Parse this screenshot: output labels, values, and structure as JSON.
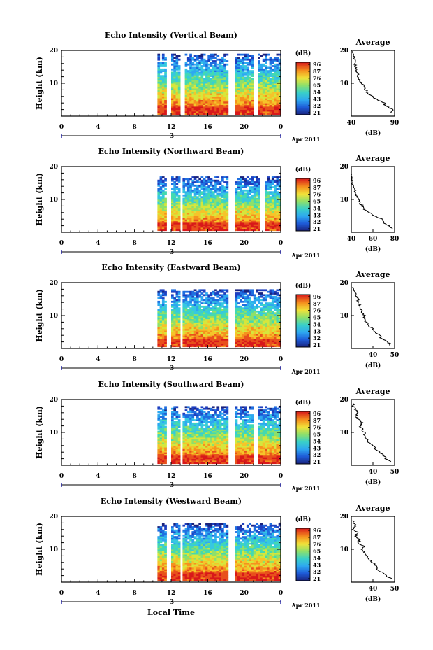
{
  "figure": {
    "bottom_label": "Local Time",
    "date_label": "Apr 2011",
    "date_marker": "3",
    "colorbar_unit": "(dB)",
    "avg_title": "Average",
    "avg_xlabel": "(dB)",
    "ylabel": "Height (km)"
  },
  "chart_data": [
    {
      "type": "heatmap",
      "title": "Echo Intensity (Vertical Beam)",
      "xlabel": "Local Time",
      "ylabel": "Height (km)",
      "xlim": [
        0,
        24
      ],
      "ylim": [
        0,
        20
      ],
      "x_ticks": [
        "0",
        "4",
        "8",
        "12",
        "16",
        "20",
        "0"
      ],
      "y_ticks": [
        "20",
        "10"
      ],
      "colorbar": {
        "label": "(dB)",
        "ticks": [
          "96",
          "87",
          "76",
          "65",
          "54",
          "43",
          "32",
          "21"
        ]
      },
      "data_start_hour": 10.5,
      "gaps_hours": [
        [
          11.6,
          12.0
        ],
        [
          12.9,
          13.4
        ],
        [
          18.3,
          19.0
        ],
        [
          21.0,
          21.4
        ]
      ],
      "top_height_km": 19,
      "average_profile": {
        "title": "Average",
        "xlabel": "(dB)",
        "xlim": [
          40,
          90
        ],
        "x_ticks": [
          "40",
          "90"
        ],
        "y_ticks": [
          "20",
          "10"
        ],
        "heights_km": [
          1,
          2,
          3,
          4,
          5,
          6,
          7,
          8,
          9,
          10,
          11,
          12,
          13,
          14,
          15,
          16,
          17,
          18,
          19
        ],
        "values_db": [
          84,
          88,
          80,
          78,
          70,
          64,
          58,
          57,
          55,
          52,
          50,
          48,
          47,
          46,
          45,
          44,
          45,
          43,
          42
        ]
      }
    },
    {
      "type": "heatmap",
      "title": "Echo Intensity (Northward Beam)",
      "xlabel": "Local Time",
      "ylabel": "Height (km)",
      "xlim": [
        0,
        24
      ],
      "ylim": [
        0,
        20
      ],
      "x_ticks": [
        "0",
        "4",
        "8",
        "12",
        "16",
        "20",
        "0"
      ],
      "y_ticks": [
        "20",
        "10"
      ],
      "colorbar": {
        "label": "(dB)",
        "ticks": [
          "96",
          "87",
          "76",
          "65",
          "54",
          "43",
          "32",
          "21"
        ]
      },
      "data_start_hour": 10.5,
      "gaps_hours": [
        [
          11.6,
          12.0
        ],
        [
          12.9,
          13.3
        ],
        [
          18.2,
          18.9
        ],
        [
          21.8,
          22.2
        ]
      ],
      "top_height_km": 17,
      "average_profile": {
        "title": "Average",
        "xlabel": "(dB)",
        "xlim": [
          40,
          80
        ],
        "x_ticks": [
          "40",
          "60",
          "80"
        ],
        "y_ticks": [
          "20",
          "10"
        ],
        "heights_km": [
          1,
          2,
          3,
          4,
          5,
          6,
          7,
          8,
          9,
          10,
          11,
          12,
          13,
          14,
          15,
          16,
          17
        ],
        "values_db": [
          78,
          75,
          70,
          68,
          62,
          56,
          52,
          50,
          48,
          46,
          45,
          44,
          43,
          42,
          41,
          40,
          40
        ]
      }
    },
    {
      "type": "heatmap",
      "title": "Echo Intensity (Eastward Beam)",
      "xlabel": "Local Time",
      "ylabel": "Height (km)",
      "xlim": [
        0,
        24
      ],
      "ylim": [
        0,
        20
      ],
      "x_ticks": [
        "0",
        "4",
        "8",
        "12",
        "16",
        "20",
        "0"
      ],
      "y_ticks": [
        "20",
        "10"
      ],
      "colorbar": {
        "label": "(dB)",
        "ticks": [
          "96",
          "87",
          "76",
          "65",
          "54",
          "43",
          "32",
          "21"
        ]
      },
      "data_start_hour": 10.5,
      "gaps_hours": [
        [
          11.6,
          12.0
        ],
        [
          12.9,
          13.3
        ],
        [
          18.3,
          19.0
        ]
      ],
      "top_height_km": 18,
      "average_profile": {
        "title": "Average",
        "xlabel": "(dB)",
        "xlim": [
          30,
          50
        ],
        "x_ticks": [
          "40",
          "50"
        ],
        "y_ticks": [
          "20",
          "10"
        ],
        "heights_km": [
          1,
          2,
          3,
          4,
          5,
          6,
          7,
          8,
          9,
          10,
          11,
          12,
          13,
          14,
          15,
          16,
          17,
          18
        ],
        "values_db": [
          48,
          47,
          44,
          43,
          41,
          40,
          38,
          37,
          36,
          36,
          35,
          34,
          34,
          33,
          33,
          32,
          32,
          31
        ]
      }
    },
    {
      "type": "heatmap",
      "title": "Echo Intensity (Southward Beam)",
      "xlabel": "Local Time",
      "ylabel": "Height (km)",
      "xlim": [
        0,
        24
      ],
      "ylim": [
        0,
        20
      ],
      "x_ticks": [
        "0",
        "4",
        "8",
        "12",
        "16",
        "20",
        "0"
      ],
      "y_ticks": [
        "20",
        "10"
      ],
      "colorbar": {
        "label": "(dB)",
        "ticks": [
          "96",
          "87",
          "76",
          "65",
          "54",
          "43",
          "32",
          "21"
        ]
      },
      "data_start_hour": 10.5,
      "gaps_hours": [
        [
          11.6,
          12.0
        ],
        [
          12.9,
          13.3
        ],
        [
          18.3,
          19.0
        ],
        [
          21.0,
          21.4
        ]
      ],
      "top_height_km": 18,
      "average_profile": {
        "title": "Average",
        "xlabel": "(dB)",
        "xlim": [
          30,
          50
        ],
        "x_ticks": [
          "40",
          "50"
        ],
        "y_ticks": [
          "20",
          "10"
        ],
        "heights_km": [
          1,
          2,
          3,
          4,
          5,
          6,
          7,
          8,
          9,
          10,
          11,
          12,
          13,
          14,
          15,
          16,
          17,
          18
        ],
        "values_db": [
          48,
          46,
          45,
          43,
          41,
          40,
          38,
          37,
          36,
          36,
          35,
          34,
          35,
          33,
          32,
          33,
          32,
          31
        ]
      }
    },
    {
      "type": "heatmap",
      "title": "Echo Intensity (Westward Beam)",
      "xlabel": "Local Time",
      "ylabel": "Height (km)",
      "xlim": [
        0,
        24
      ],
      "ylim": [
        0,
        20
      ],
      "x_ticks": [
        "0",
        "4",
        "8",
        "12",
        "16",
        "20",
        "0"
      ],
      "y_ticks": [
        "20",
        "10"
      ],
      "colorbar": {
        "label": "(dB)",
        "ticks": [
          "96",
          "87",
          "76",
          "65",
          "54",
          "43",
          "32",
          "21"
        ]
      },
      "data_start_hour": 10.5,
      "gaps_hours": [
        [
          11.6,
          12.0
        ],
        [
          12.9,
          13.3
        ],
        [
          18.3,
          19.0
        ]
      ],
      "top_height_km": 18,
      "average_profile": {
        "title": "Average",
        "xlabel": "(dB)",
        "xlim": [
          30,
          50
        ],
        "x_ticks": [
          "40",
          "50"
        ],
        "y_ticks": [
          "20",
          "10"
        ],
        "heights_km": [
          1,
          2,
          3,
          4,
          5,
          6,
          7,
          8,
          9,
          10,
          11,
          12,
          13,
          14,
          15,
          16,
          17,
          18
        ],
        "values_db": [
          49,
          46,
          44,
          42,
          41,
          40,
          38,
          37,
          36,
          35,
          36,
          33,
          34,
          32,
          33,
          31,
          32,
          31
        ]
      }
    }
  ]
}
